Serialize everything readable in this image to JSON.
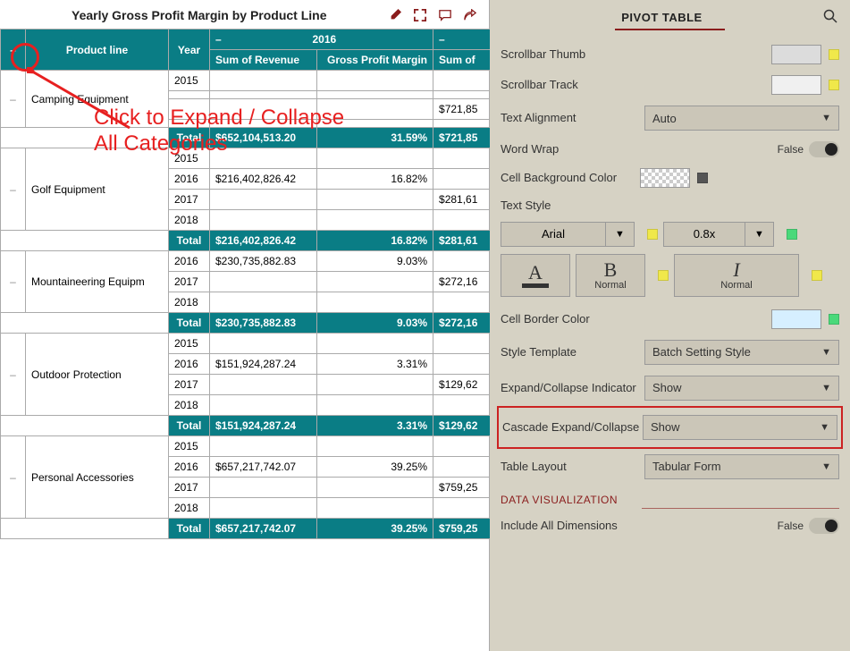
{
  "colors": {
    "header_bg": "#0a7d85",
    "panel_bg": "#d6d2c4",
    "accent": "#8a1c1c",
    "annot": "#e72020",
    "yellow_sq": "#f0e84a",
    "green_sq": "#4ad97a",
    "grey_sq": "#555555",
    "scroll_thumb": "#dcdcdc",
    "scroll_track": "#f0f0f0",
    "border_swatch": "#d6efff"
  },
  "title": "Yearly Gross Profit Margin by Product Line",
  "annotation": {
    "line1": "Click to Expand / Collapse",
    "line2": "All Categories"
  },
  "pivot": {
    "corner_minus": "–",
    "product_line_label": "Product line",
    "year_label": "Year",
    "year_group_minus": "–",
    "year_group": "2016",
    "year_group2_minus": "–",
    "col_sum_rev": "Sum of Revenue",
    "col_gpm": "Gross Profit Margin",
    "col_sum_rev2": "Sum of",
    "total_label": "Total",
    "groups": [
      {
        "name": "Camping Equipment",
        "rows": [
          {
            "year": "2015",
            "rev": "",
            "gpm": "",
            "rev2": ""
          },
          {
            "year": "",
            "rev": "",
            "gpm": "",
            "rev2": ""
          },
          {
            "year": "",
            "rev": "",
            "gpm": "",
            "rev2": "$721,85"
          },
          {
            "year": "",
            "rev": "",
            "gpm": "",
            "rev2": ""
          }
        ],
        "total": {
          "rev": "$652,104,513.20",
          "gpm": "31.59%",
          "rev2": "$721,85"
        }
      },
      {
        "name": "Golf Equipment",
        "rows": [
          {
            "year": "2015",
            "rev": "",
            "gpm": "",
            "rev2": ""
          },
          {
            "year": "2016",
            "rev": "$216,402,826.42",
            "gpm": "16.82%",
            "rev2": ""
          },
          {
            "year": "2017",
            "rev": "",
            "gpm": "",
            "rev2": "$281,61"
          },
          {
            "year": "2018",
            "rev": "",
            "gpm": "",
            "rev2": ""
          }
        ],
        "total": {
          "rev": "$216,402,826.42",
          "gpm": "16.82%",
          "rev2": "$281,61"
        }
      },
      {
        "name": "Mountaineering Equipm",
        "rows": [
          {
            "year": "2016",
            "rev": "$230,735,882.83",
            "gpm": "9.03%",
            "rev2": ""
          },
          {
            "year": "2017",
            "rev": "",
            "gpm": "",
            "rev2": "$272,16"
          },
          {
            "year": "2018",
            "rev": "",
            "gpm": "",
            "rev2": ""
          }
        ],
        "total": {
          "rev": "$230,735,882.83",
          "gpm": "9.03%",
          "rev2": "$272,16"
        }
      },
      {
        "name": "Outdoor Protection",
        "rows": [
          {
            "year": "2015",
            "rev": "",
            "gpm": "",
            "rev2": ""
          },
          {
            "year": "2016",
            "rev": "$151,924,287.24",
            "gpm": "3.31%",
            "rev2": ""
          },
          {
            "year": "2017",
            "rev": "",
            "gpm": "",
            "rev2": "$129,62"
          },
          {
            "year": "2018",
            "rev": "",
            "gpm": "",
            "rev2": ""
          }
        ],
        "total": {
          "rev": "$151,924,287.24",
          "gpm": "3.31%",
          "rev2": "$129,62"
        }
      },
      {
        "name": "Personal Accessories",
        "rows": [
          {
            "year": "2015",
            "rev": "",
            "gpm": "",
            "rev2": ""
          },
          {
            "year": "2016",
            "rev": "$657,217,742.07",
            "gpm": "39.25%",
            "rev2": ""
          },
          {
            "year": "2017",
            "rev": "",
            "gpm": "",
            "rev2": "$759,25"
          },
          {
            "year": "2018",
            "rev": "",
            "gpm": "",
            "rev2": ""
          }
        ],
        "total": {
          "rev": "$657,217,742.07",
          "gpm": "39.25%",
          "rev2": "$759,25"
        }
      }
    ]
  },
  "panel": {
    "title": "PIVOT TABLE",
    "scroll_thumb": "Scrollbar Thumb",
    "scroll_track": "Scrollbar Track",
    "text_align": "Text Alignment",
    "text_align_val": "Auto",
    "word_wrap": "Word Wrap",
    "word_wrap_val": "False",
    "cell_bg": "Cell Background Color",
    "text_style": "Text Style",
    "font_name": "Arial",
    "font_size": "0.8x",
    "style_A": "A",
    "style_B": "B",
    "style_B_sub": "Normal",
    "style_I": "I",
    "style_I_sub": "Normal",
    "border_color": "Cell Border Color",
    "style_tmpl": "Style Template",
    "style_tmpl_val": "Batch Setting Style",
    "exp_ind": "Expand/Collapse Indicator",
    "exp_ind_val": "Show",
    "cascade": "Cascade Expand/Collapse",
    "cascade_val": "Show",
    "layout": "Table Layout",
    "layout_val": "Tabular Form",
    "dataviz": "DATA VISUALIZATION",
    "incl_all": "Include All Dimensions",
    "incl_all_val": "False"
  }
}
